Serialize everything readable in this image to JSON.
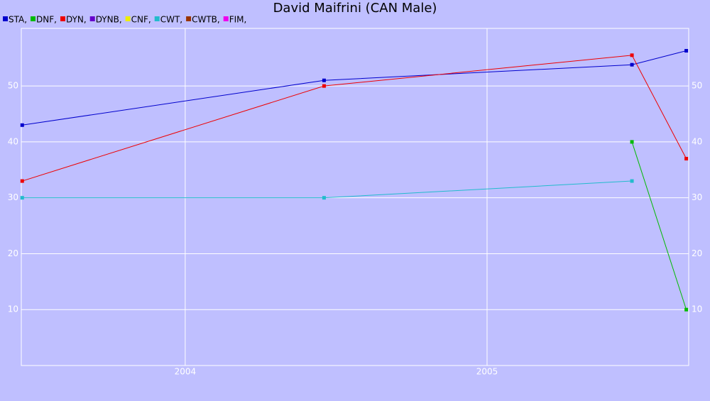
{
  "chart_data": {
    "type": "line",
    "title": "David Maifrini (CAN Male)",
    "x": [
      2003.46,
      2004.46,
      2005.48,
      2005.66
    ],
    "xlim": [
      2003.457,
      2005.668
    ],
    "xticks": [
      2004,
      2005
    ],
    "ylim": [
      0,
      60.3
    ],
    "yticks": [
      10,
      20,
      30,
      40,
      50
    ],
    "grid": true,
    "series": [
      {
        "name": "STA,",
        "color": "#0000cc",
        "values": [
          43,
          51,
          53.8,
          56.3
        ]
      },
      {
        "name": "DNF,",
        "color": "#00bb00",
        "values": [
          null,
          null,
          40,
          10
        ]
      },
      {
        "name": "DYN,",
        "color": "#ee0000",
        "values": [
          33,
          50,
          55.5,
          37
        ]
      },
      {
        "name": "DYNB,",
        "color": "#6600cc",
        "values": [
          null,
          null,
          null,
          null
        ]
      },
      {
        "name": "CNF,",
        "color": "#eeee00",
        "values": [
          null,
          null,
          null,
          null
        ]
      },
      {
        "name": "CWT,",
        "color": "#22bbcc",
        "values": [
          30,
          30,
          33,
          null
        ]
      },
      {
        "name": "CWTB,",
        "color": "#993300",
        "values": [
          null,
          null,
          null,
          null
        ]
      },
      {
        "name": "FIM,",
        "color": "#ee00ee",
        "values": [
          null,
          null,
          null,
          null
        ]
      }
    ]
  }
}
